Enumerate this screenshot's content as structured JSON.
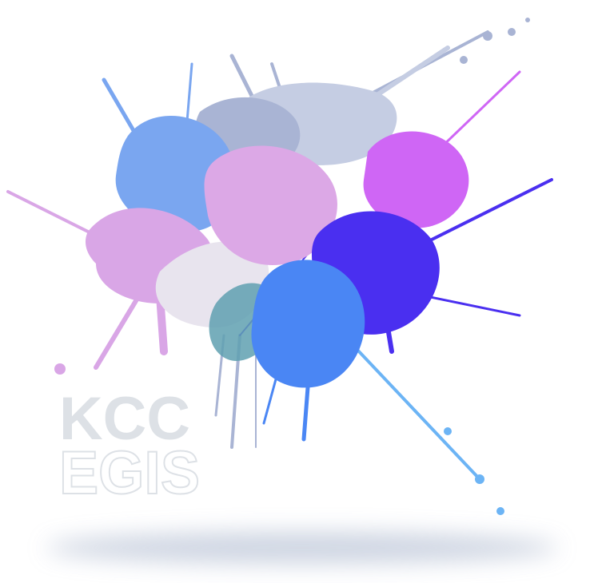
{
  "logo": {
    "line1": "KCC",
    "line2": "EGIS"
  }
}
